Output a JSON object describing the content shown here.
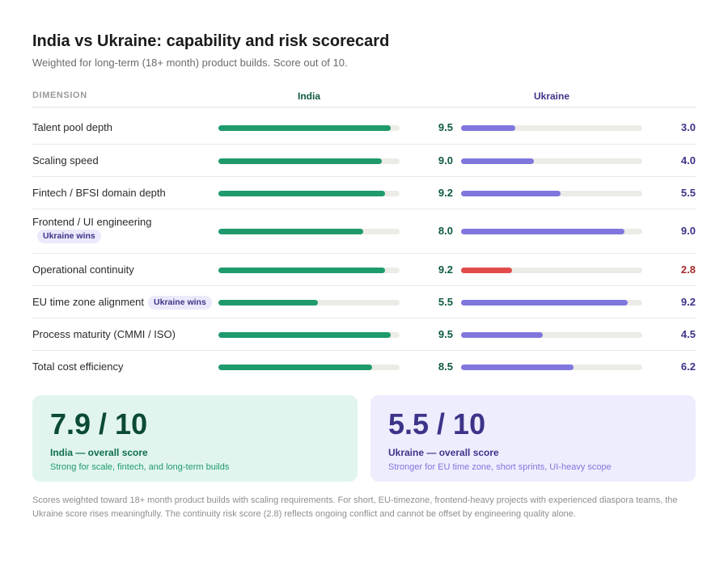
{
  "title": "India vs Ukraine: capability and risk scorecard",
  "subtitle": "Weighted for long-term (18+ month) product builds. Score out of 10.",
  "columns": {
    "dimension": "DIMENSION",
    "india": "India",
    "ukraine": "Ukraine"
  },
  "colors": {
    "india_bar": "#1f9a6c",
    "ukraine_bar": "#7f77dd",
    "risk_bar": "#e24b4a",
    "track": "#ecebe6"
  },
  "chart_data": {
    "type": "bar",
    "orientation": "horizontal",
    "scale_max": 10,
    "categories": [
      "Talent pool depth",
      "Scaling speed",
      "Fintech / BFSI domain depth",
      "Frontend / UI engineering",
      "Operational continuity",
      "EU time zone alignment",
      "Process maturity (CMMI / ISO)",
      "Total cost efficiency"
    ],
    "series": [
      {
        "name": "India",
        "values": [
          9.5,
          9.0,
          9.2,
          8.0,
          9.2,
          5.5,
          9.5,
          8.5
        ]
      },
      {
        "name": "Ukraine",
        "values": [
          3.0,
          4.0,
          5.5,
          9.0,
          2.8,
          9.2,
          4.5,
          6.2
        ]
      }
    ],
    "score_labels": {
      "india": [
        "9.5",
        "9.0",
        "9.2",
        "8.0",
        "9.2",
        "5.5",
        "9.5",
        "8.5"
      ],
      "ukraine": [
        "3.0",
        "4.0",
        "5.5",
        "9.0",
        "2.8",
        "9.2",
        "4.5",
        "6.2"
      ]
    },
    "badges": [
      "",
      "",
      "",
      "Ukraine wins",
      "",
      "Ukraine wins",
      "",
      ""
    ],
    "risk_flags": [
      false,
      false,
      false,
      false,
      true,
      false,
      false,
      false
    ]
  },
  "summary": {
    "india": {
      "score": "7.9 / 10",
      "title": "India — overall score",
      "note": "Strong for scale, fintech, and long-term builds"
    },
    "ukraine": {
      "score": "5.5 / 10",
      "title": "Ukraine — overall score",
      "note": "Stronger for EU time zone, short sprints, UI-heavy scope"
    }
  },
  "footnote": "Scores weighted toward 18+ month product builds with scaling requirements. For short, EU-timezone, frontend-heavy projects with experienced diaspora teams, the Ukraine score rises meaningfully. The continuity risk score (2.8) reflects ongoing conflict and cannot be offset by engineering quality alone."
}
